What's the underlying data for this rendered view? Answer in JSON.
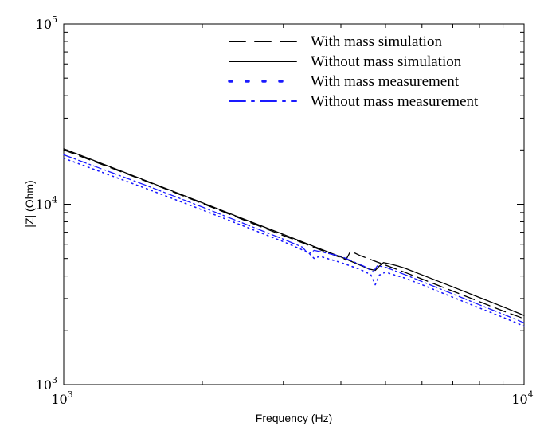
{
  "chart_data": {
    "type": "line",
    "title": "",
    "xlabel": "Frequency (Hz)",
    "ylabel": "|Z| (Ohm)",
    "xscale": "log",
    "yscale": "log",
    "xlim": [
      1000,
      10000
    ],
    "ylim": [
      1000,
      100000
    ],
    "grid": false,
    "legend_position": "top-right",
    "x_ticks": [
      {
        "base": "10",
        "exp": "3",
        "value": 1000
      },
      {
        "base": "10",
        "exp": "4",
        "value": 10000
      }
    ],
    "y_ticks": [
      {
        "base": "10",
        "exp": "3",
        "value": 1000
      },
      {
        "base": "10",
        "exp": "4",
        "value": 10000
      },
      {
        "base": "10",
        "exp": "5",
        "value": 100000
      }
    ],
    "series": [
      {
        "name": "With mass simulation",
        "color": "#000000",
        "style": "dashed",
        "x": [
          1000,
          1500,
          2000,
          2500,
          3000,
          3200,
          3600,
          4000,
          4100,
          4200,
          4400,
          4600,
          4800,
          5000,
          5500,
          6000,
          7000,
          8000,
          9000,
          10000
        ],
        "y": [
          20000,
          13500,
          10100,
          8050,
          6700,
          6300,
          5600,
          5050,
          4900,
          5500,
          5200,
          4980,
          4780,
          4600,
          4200,
          3850,
          3300,
          2880,
          2560,
          2320
        ]
      },
      {
        "name": "Without mass simulation",
        "color": "#000000",
        "style": "solid",
        "x": [
          1000,
          1500,
          2000,
          2500,
          3000,
          4000,
          4300,
          4600,
          4750,
          4850,
          4950,
          5100,
          5300,
          5500,
          6000,
          7000,
          8000,
          9000,
          10000
        ],
        "y": [
          20300,
          13600,
          10200,
          8150,
          6800,
          5100,
          4720,
          4380,
          4300,
          4550,
          4750,
          4680,
          4560,
          4430,
          4060,
          3480,
          3040,
          2700,
          2420
        ]
      },
      {
        "name": "With mass measurement",
        "color": "#1a1aff",
        "style": "dotted",
        "x": [
          1000,
          1500,
          2000,
          2500,
          3000,
          3400,
          3500,
          3600,
          4000,
          4300,
          4500,
          4650,
          4750,
          4850,
          5000,
          5500,
          6000,
          7000,
          8000,
          9000,
          10000
        ],
        "y": [
          18000,
          12300,
          9300,
          7450,
          6200,
          5400,
          5000,
          5150,
          4750,
          4450,
          4250,
          4050,
          3580,
          4050,
          4200,
          3900,
          3580,
          3050,
          2660,
          2360,
          2110
        ]
      },
      {
        "name": "Without mass measurement",
        "color": "#1a1aff",
        "style": "dashdot",
        "x": [
          1000,
          1500,
          2000,
          2500,
          3000,
          3300,
          3400,
          3500,
          4000,
          4500,
          4700,
          4800,
          4900,
          5000,
          5500,
          6000,
          7000,
          8000,
          9000,
          10000
        ],
        "y": [
          18800,
          12800,
          9650,
          7700,
          6400,
          5780,
          5300,
          5550,
          5150,
          4520,
          4220,
          4560,
          4520,
          4480,
          4080,
          3730,
          3180,
          2770,
          2460,
          2200
        ]
      }
    ]
  }
}
